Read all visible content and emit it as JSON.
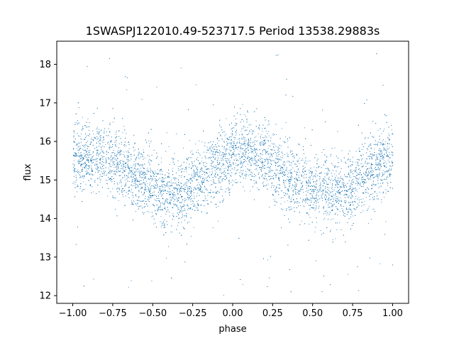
{
  "chart_data": {
    "type": "scatter",
    "title": "1SWASPJ122010.49-523717.5 Period 13538.29883s",
    "xlabel": "phase",
    "ylabel": "flux",
    "xlim": [
      -1.1,
      1.1
    ],
    "ylim": [
      11.8,
      18.6
    ],
    "x_ticks": [
      -1.0,
      -0.75,
      -0.5,
      -0.25,
      0.0,
      0.25,
      0.5,
      0.75,
      1.0
    ],
    "x_tick_labels": [
      "−1.00",
      "−0.75",
      "−0.50",
      "−0.25",
      "0.00",
      "0.25",
      "0.50",
      "0.75",
      "1.00"
    ],
    "y_ticks": [
      12,
      13,
      14,
      15,
      16,
      17,
      18
    ],
    "y_tick_labels": [
      "12",
      "13",
      "14",
      "15",
      "16",
      "17",
      "18"
    ],
    "grid": false,
    "marker_color": "#1f77b4",
    "series": [
      {
        "x_range": [
          -1.0,
          1.0
        ],
        "trend": [
          {
            "x": -1.0,
            "y": 15.6
          },
          {
            "x": -0.9,
            "y": 15.6
          },
          {
            "x": -0.8,
            "y": 15.6
          },
          {
            "x": -0.7,
            "y": 15.4
          },
          {
            "x": -0.6,
            "y": 15.1
          },
          {
            "x": -0.5,
            "y": 14.8
          },
          {
            "x": -0.4,
            "y": 14.65
          },
          {
            "x": -0.3,
            "y": 14.7
          },
          {
            "x": -0.2,
            "y": 15.0
          },
          {
            "x": -0.1,
            "y": 15.4
          },
          {
            "x": 0.0,
            "y": 15.6
          },
          {
            "x": 0.1,
            "y": 15.7
          },
          {
            "x": 0.2,
            "y": 15.55
          },
          {
            "x": 0.3,
            "y": 15.3
          },
          {
            "x": 0.4,
            "y": 14.95
          },
          {
            "x": 0.5,
            "y": 14.7
          },
          {
            "x": 0.6,
            "y": 14.65
          },
          {
            "x": 0.7,
            "y": 14.7
          },
          {
            "x": 0.8,
            "y": 15.0
          },
          {
            "x": 0.9,
            "y": 15.35
          },
          {
            "x": 1.0,
            "y": 15.6
          }
        ],
        "scatter_std": 0.45,
        "outlier_range": [
          12.0,
          18.3
        ]
      }
    ]
  }
}
